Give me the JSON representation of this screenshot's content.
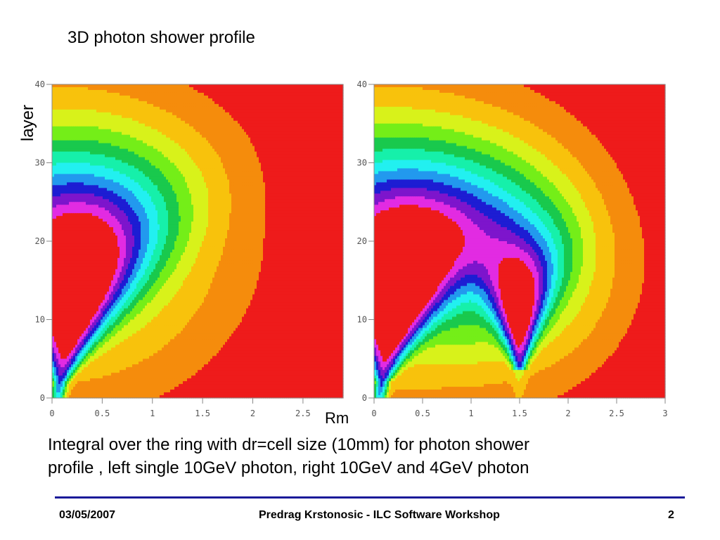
{
  "slide": {
    "title": "3D photon shower profile",
    "ylabel": "layer",
    "xlabel": "Rm",
    "caption_lines": [
      "Integral over the ring with dr=cell size (10mm)  for photon shower",
      "profile , left single 10GeV photon, right  10GeV and 4GeV photon"
    ],
    "footer": {
      "date": "03/05/2007",
      "center": "Predrag Krstonosic - ILC Software Workshop",
      "page": "2"
    }
  },
  "colors": {
    "contour_levels": [
      "#ee1b1b",
      "#f58c0c",
      "#f8c20c",
      "#d8f21a",
      "#74ee18",
      "#19c94d",
      "#16f0aa",
      "#22f0f0",
      "#2299ee",
      "#1d1dd3",
      "#7d15cc",
      "#e22be2",
      "#ee1b1b"
    ],
    "rule": "#1a1a99"
  },
  "chart_data": [
    {
      "type": "heatmap",
      "description_key": "left",
      "x_ticks": [
        "0",
        "0.5",
        "1",
        "1.5",
        "2",
        "2.5"
      ],
      "y_ticks": [
        "0",
        "10",
        "20",
        "30",
        "40"
      ],
      "xlim": [
        0,
        2.9
      ],
      "ylim": [
        0,
        40
      ],
      "x_tick_values": [
        0,
        0.5,
        1,
        1.5,
        2,
        2.5
      ],
      "y_tick_values": [
        0,
        10,
        20,
        30,
        40
      ],
      "contour_levels": 12
    },
    {
      "type": "heatmap",
      "description_key": "right",
      "x_ticks": [
        "0",
        "0.5",
        "1",
        "1.5",
        "2",
        "2.5",
        "3"
      ],
      "y_ticks": [
        "0",
        "10",
        "20",
        "30",
        "40"
      ],
      "xlim": [
        0,
        3
      ],
      "ylim": [
        0,
        40
      ],
      "x_tick_values": [
        0,
        0.5,
        1,
        1.5,
        2,
        2.5,
        3
      ],
      "y_tick_values": [
        0,
        10,
        20,
        30,
        40
      ],
      "contour_levels": 12
    }
  ]
}
